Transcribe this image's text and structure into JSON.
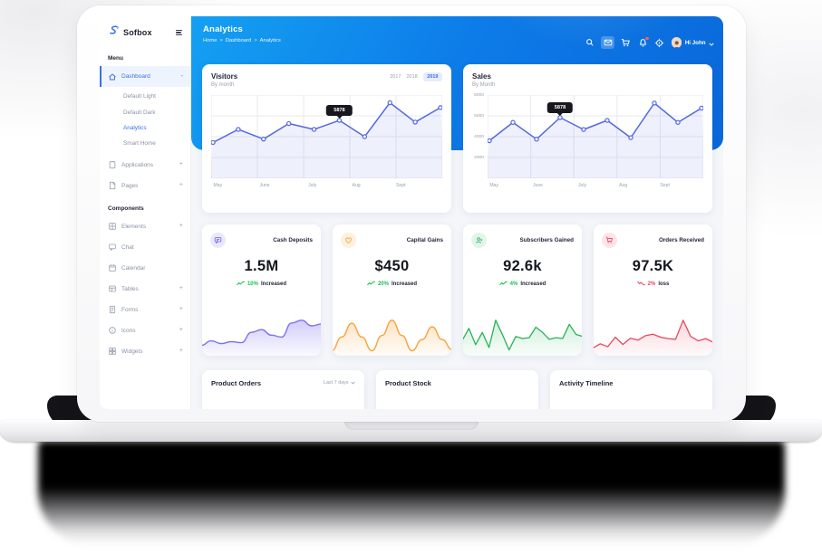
{
  "app": {
    "logo": "Sofbox"
  },
  "header": {
    "title": "Analytics",
    "breadcrumb": [
      "Home",
      "Dashboard",
      "Analytics"
    ],
    "separator": ">",
    "greeting": "Hi John",
    "icons": [
      "search-icon",
      "mail-icon",
      "cart-icon",
      "bell-icon",
      "compass-icon"
    ]
  },
  "sidebar": {
    "section1_label": "Menu",
    "section2_label": "Components",
    "menu": [
      {
        "label": "Dashboard",
        "icon": "home-icon",
        "toggle": "-",
        "children": [
          "Default Light",
          "Default Dark",
          "Analytics",
          "Smart Home"
        ],
        "active_child": "Analytics"
      },
      {
        "label": "Applications",
        "icon": "clipboard-icon",
        "toggle": "+"
      },
      {
        "label": "Pages",
        "icon": "pages-icon",
        "toggle": "+"
      }
    ],
    "components": [
      {
        "label": "Elements",
        "icon": "grid-icon",
        "toggle": "+"
      },
      {
        "label": "Chat",
        "icon": "chat-icon",
        "toggle": ""
      },
      {
        "label": "Calendar",
        "icon": "calendar-icon",
        "toggle": ""
      },
      {
        "label": "Tables",
        "icon": "table-icon",
        "toggle": "+"
      },
      {
        "label": "Forms",
        "icon": "form-icon",
        "toggle": "+"
      },
      {
        "label": "Icons",
        "icon": "info-icon",
        "toggle": "+"
      },
      {
        "label": "Widgets",
        "icon": "widgets-icon",
        "toggle": "+"
      }
    ]
  },
  "stats": [
    {
      "label": "Cash Deposits",
      "value": "1.5M",
      "change": "10%",
      "change_text": "Increased",
      "direction": "up",
      "icon": "message-icon",
      "accent": "#6e62e8",
      "icon_bg": "#e9e7fd"
    },
    {
      "label": "Capital Gains",
      "value": "$450",
      "change": "20%",
      "change_text": "Increased",
      "direction": "up",
      "icon": "heart-icon",
      "accent": "#f8a23c",
      "icon_bg": "#fdf0df"
    },
    {
      "label": "Subscribers Gained",
      "value": "92.6k",
      "change": "4%",
      "change_text": "Increased",
      "direction": "up",
      "icon": "user-icon",
      "accent": "#27b356",
      "icon_bg": "#e1f5e9"
    },
    {
      "label": "Orders Received",
      "value": "97.5K",
      "change": "2%",
      "change_text": "loss",
      "direction": "down",
      "icon": "cart-icon",
      "accent": "#e8485e",
      "icon_bg": "#fde4e8"
    }
  ],
  "panels": [
    {
      "title": "Product Orders",
      "filter": "Last 7 days"
    },
    {
      "title": "Product Stock",
      "filter": ""
    },
    {
      "title": "Activity Timeline",
      "filter": ""
    }
  ],
  "colors": {
    "primary_blue": "#0d7ce8",
    "link_blue": "#3a70e8",
    "chart_line": "#5468e0",
    "success_green": "#1bbf58",
    "danger_red": "#e8485e"
  },
  "chart_data": [
    {
      "id": "visitors",
      "type": "area",
      "title": "Visitors",
      "subtitle": "By month",
      "tabs": [
        "2017",
        "2018",
        "2019"
      ],
      "active_tab": "2019",
      "x_labels": [
        "May",
        "June",
        "July",
        "Aug",
        "Sept"
      ],
      "values": [
        3600,
        4950,
        3950,
        5550,
        4950,
        5878,
        4200,
        7700,
        5700,
        7200
      ],
      "ymin": 0,
      "ymax": 8400,
      "grid": true,
      "show_points": true,
      "pad": 2,
      "color": "#5468e0",
      "flat_fill": "rgba(84,104,224,0.10)",
      "stroke_width": 1.5,
      "tooltip": {
        "index": 5,
        "value": "5878"
      }
    },
    {
      "id": "sales",
      "type": "area",
      "title": "Sales",
      "subtitle": "By Month",
      "x_labels": [
        "May",
        "June",
        "July",
        "Aug",
        "Sept"
      ],
      "y_ticks": [
        "8000",
        "6000",
        "4000",
        "2000"
      ],
      "values": [
        3600,
        5400,
        3750,
        5878,
        4700,
        5600,
        3900,
        7300,
        5400,
        6800
      ],
      "ymin": 0,
      "ymax": 8000,
      "grid": true,
      "show_points": true,
      "pad": 2,
      "color": "#5468e0",
      "flat_fill": "rgba(84,104,224,0.10)",
      "stroke_width": 1.5,
      "tooltip": {
        "index": 3,
        "value": "5878"
      }
    },
    {
      "id": "spark-cash",
      "type": "area",
      "smooth": true,
      "color": "#7c71f2",
      "values": [
        20,
        30,
        24,
        28,
        26,
        48,
        54,
        42,
        38,
        68,
        74,
        62,
        66
      ],
      "fill_opacity": 0.35,
      "stroke_width": 1.4
    },
    {
      "id": "spark-gains",
      "type": "area",
      "smooth": true,
      "color": "#f8a23c",
      "values": [
        8,
        35,
        62,
        35,
        8,
        38,
        68,
        38,
        8,
        30,
        55,
        30,
        10
      ],
      "fill_opacity": 0.3,
      "stroke_width": 1.4
    },
    {
      "id": "spark-subs",
      "type": "area",
      "color": "#27b356",
      "values": [
        35,
        65,
        25,
        55,
        18,
        85,
        50,
        12,
        45,
        40,
        42,
        68,
        55,
        38,
        42,
        40,
        75,
        50,
        45
      ],
      "fill_opacity": 0.22,
      "stroke_width": 1.3
    },
    {
      "id": "spark-orders",
      "type": "area",
      "color": "#e8485e",
      "values": [
        18,
        30,
        22,
        48,
        28,
        45,
        40,
        52,
        56,
        48,
        44,
        42,
        94,
        50,
        38,
        44,
        34
      ],
      "fill_opacity": 0.22,
      "stroke_width": 1.3
    }
  ]
}
